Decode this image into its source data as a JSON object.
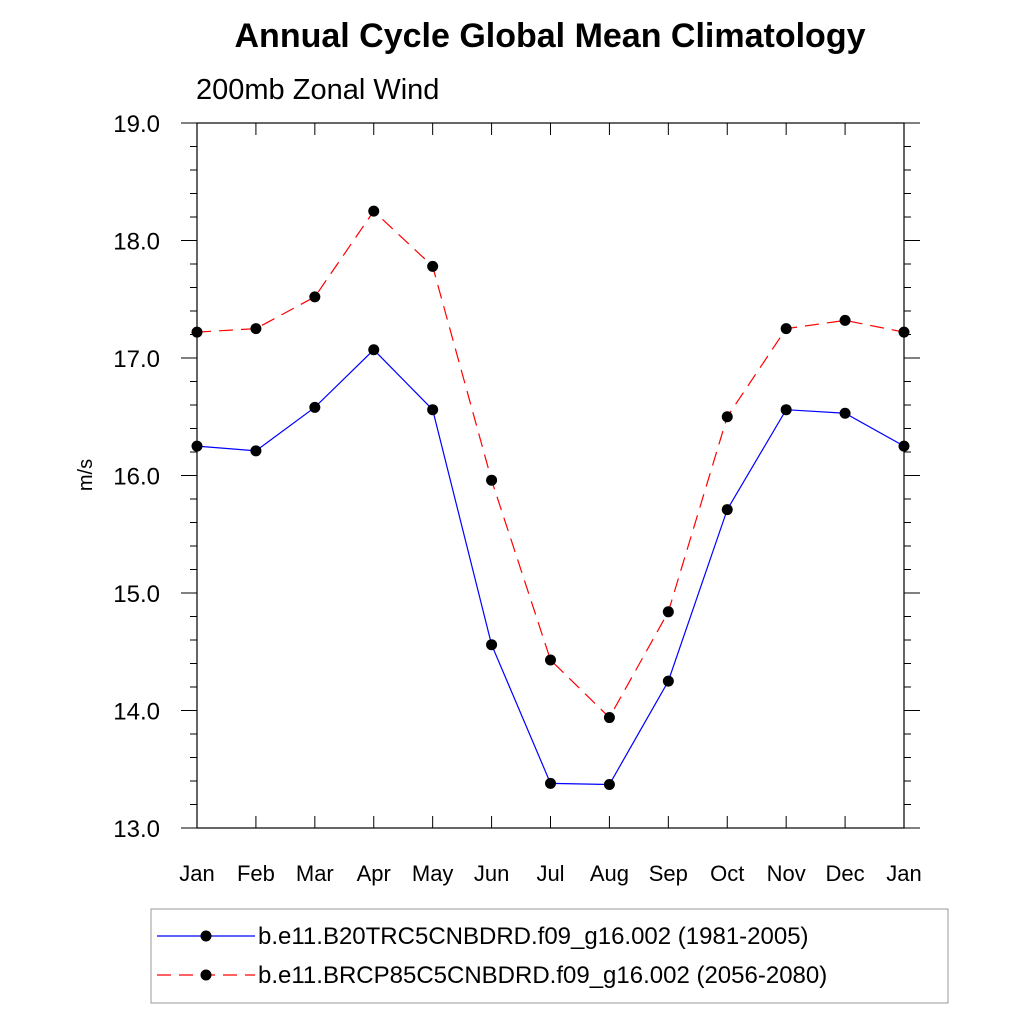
{
  "chart_data": {
    "type": "line",
    "title": "Annual Cycle Global Mean Climatology",
    "subtitle": "200mb Zonal Wind",
    "xlabel": "",
    "ylabel": "m/s",
    "categories": [
      "Jan",
      "Feb",
      "Mar",
      "Apr",
      "May",
      "Jun",
      "Jul",
      "Aug",
      "Sep",
      "Oct",
      "Nov",
      "Dec",
      "Jan"
    ],
    "ylim": [
      13.0,
      19.0
    ],
    "yticks": [
      "13.0",
      "14.0",
      "15.0",
      "16.0",
      "17.0",
      "18.0",
      "19.0"
    ],
    "grid": false,
    "legend_position": "bottom",
    "series": [
      {
        "name": "b.e11.B20TRC5CNBDRD.f09_g16.002 (1981-2005)",
        "color": "#0000ff",
        "dash": "solid",
        "values": [
          16.25,
          16.21,
          16.58,
          17.07,
          16.56,
          14.56,
          13.38,
          13.37,
          14.25,
          15.71,
          16.56,
          16.53,
          16.25
        ]
      },
      {
        "name": "b.e11.BRCP85C5CNBDRD.f09_g16.002 (2056-2080)",
        "color": "#ff0000",
        "dash": "dashed",
        "values": [
          17.22,
          17.25,
          17.52,
          18.25,
          17.78,
          15.96,
          14.43,
          13.94,
          14.84,
          16.5,
          17.25,
          17.32,
          17.22
        ]
      }
    ]
  }
}
